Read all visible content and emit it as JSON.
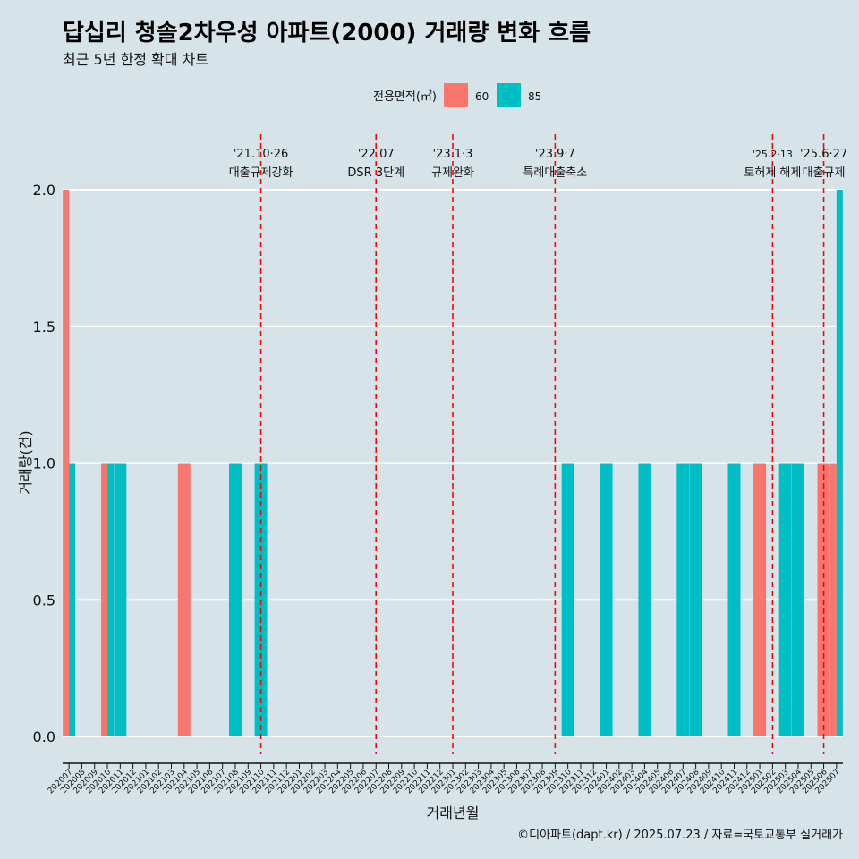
{
  "title": "답십리 청솔2차우성 아파트(2000) 거래량 변화 흐름",
  "subtitle": "최근 5년 한정 확대 차트",
  "caption": "©디아파트(dapt.kr) / 2025.07.23 / 자료=국토교통부 실거래가",
  "chart_data": {
    "type": "bar",
    "title": "답십리 청솔2차우성 아파트(2000) 거래량 변화 흐름",
    "subtitle": "최근 5년 한정 확대 차트",
    "xlabel": "거래년월",
    "ylabel": "거래량(건)",
    "ylim": [
      0,
      2
    ],
    "yticks": [
      "0.0",
      "0.5",
      "1.0",
      "1.5",
      "2.0"
    ],
    "grid": true,
    "legend": {
      "title": "전용면적(㎡)",
      "position": "top",
      "entries": [
        {
          "name": "60",
          "color": "#f8766d"
        },
        {
          "name": "85",
          "color": "#00bfc4"
        }
      ]
    },
    "categories": [
      "202007",
      "202008",
      "202009",
      "202010",
      "202011",
      "202012",
      "202101",
      "202102",
      "202103",
      "202104",
      "202105",
      "202106",
      "202107",
      "202108",
      "202109",
      "202110",
      "202111",
      "202112",
      "202201",
      "202202",
      "202203",
      "202204",
      "202205",
      "202206",
      "202207",
      "202208",
      "202209",
      "202210",
      "202211",
      "202212",
      "202301",
      "202302",
      "202303",
      "202304",
      "202305",
      "202306",
      "202307",
      "202308",
      "202309",
      "202310",
      "202311",
      "202312",
      "202401",
      "202402",
      "202403",
      "202404",
      "202405",
      "202406",
      "202407",
      "202408",
      "202409",
      "202410",
      "202411",
      "202412",
      "202501",
      "202502",
      "202503",
      "202504",
      "202505",
      "202506",
      "202507"
    ],
    "series": [
      {
        "name": "60",
        "color": "#f8766d",
        "values": [
          2,
          0,
          0,
          1,
          0,
          0,
          0,
          0,
          0,
          1,
          0,
          0,
          0,
          0,
          0,
          0,
          0,
          0,
          0,
          0,
          0,
          0,
          0,
          0,
          0,
          0,
          0,
          0,
          0,
          0,
          0,
          0,
          0,
          0,
          0,
          0,
          0,
          0,
          0,
          0,
          0,
          0,
          0,
          0,
          0,
          0,
          0,
          0,
          0,
          0,
          0,
          0,
          0,
          0,
          1,
          0,
          0,
          0,
          0,
          1,
          1
        ]
      },
      {
        "name": "85",
        "color": "#00bfc4",
        "values": [
          1,
          0,
          0,
          1,
          1,
          0,
          0,
          0,
          0,
          0,
          0,
          0,
          0,
          1,
          0,
          1,
          0,
          0,
          0,
          0,
          0,
          0,
          0,
          0,
          0,
          0,
          0,
          0,
          0,
          0,
          0,
          0,
          0,
          0,
          0,
          0,
          0,
          0,
          0,
          1,
          0,
          0,
          1,
          0,
          0,
          1,
          0,
          0,
          1,
          1,
          0,
          0,
          1,
          0,
          0,
          0,
          1,
          1,
          0,
          0,
          2
        ]
      }
    ],
    "annotations": [
      {
        "date": "'21.10·26",
        "label": "대출규제강화",
        "x": "202110"
      },
      {
        "date": "'22.07",
        "label": "DSR 3단계",
        "x": "202207"
      },
      {
        "date": "'23.1·3",
        "label": "규제완화",
        "x": "202301"
      },
      {
        "date": "'23.9·7",
        "label": "특례대출축소",
        "x": "202309"
      },
      {
        "date": "'25.2·13",
        "label": "토허제 해제",
        "x": "202502"
      },
      {
        "date": "'25.6·27",
        "label": "대출규제",
        "x": "202506"
      }
    ],
    "annotation_color": "#ff0000"
  }
}
